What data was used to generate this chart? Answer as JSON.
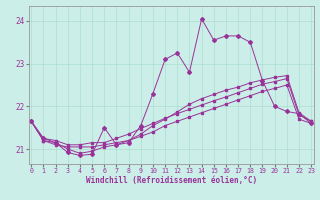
{
  "xlabel": "Windchill (Refroidissement éolien,°C)",
  "background_color": "#cceee8",
  "grid_color": "#aaddcc",
  "line_color": "#993399",
  "xmin": 0,
  "xmax": 23,
  "ymin": 20.65,
  "ymax": 24.35,
  "yticks": [
    21,
    22,
    23,
    24
  ],
  "xticks": [
    0,
    1,
    2,
    3,
    4,
    5,
    6,
    7,
    8,
    9,
    10,
    11,
    12,
    13,
    14,
    15,
    16,
    17,
    18,
    19,
    20,
    21,
    22,
    23
  ],
  "line1_x": [
    0,
    1,
    2,
    3,
    4,
    5,
    6,
    7,
    8,
    9,
    10,
    11,
    12,
    13,
    14,
    15,
    16,
    17,
    18,
    19,
    20,
    21,
    22,
    23
  ],
  "line1_y": [
    21.65,
    21.2,
    21.1,
    21.05,
    21.05,
    21.05,
    21.1,
    21.15,
    21.2,
    21.3,
    21.4,
    21.55,
    21.65,
    21.75,
    21.85,
    21.95,
    22.05,
    22.15,
    22.25,
    22.35,
    22.42,
    22.5,
    21.7,
    21.6
  ],
  "line2_x": [
    0,
    1,
    2,
    3,
    4,
    5,
    6,
    7,
    8,
    9,
    10,
    11,
    12,
    13,
    14,
    15,
    16,
    17,
    18,
    19,
    20,
    21,
    22,
    23
  ],
  "line2_y": [
    21.65,
    21.25,
    21.2,
    21.1,
    21.1,
    21.15,
    21.15,
    21.25,
    21.35,
    21.48,
    21.6,
    21.72,
    21.83,
    21.93,
    22.03,
    22.13,
    22.22,
    22.32,
    22.42,
    22.52,
    22.58,
    22.65,
    21.8,
    21.65
  ],
  "line3_x": [
    0,
    1,
    2,
    3,
    4,
    5,
    6,
    7,
    8,
    9,
    10,
    11,
    12,
    13,
    14,
    15,
    16,
    17,
    18,
    19,
    20,
    21,
    22,
    23
  ],
  "line3_y": [
    21.65,
    21.2,
    21.15,
    21.0,
    20.9,
    20.95,
    21.05,
    21.1,
    21.2,
    21.35,
    21.55,
    21.7,
    21.87,
    22.05,
    22.18,
    22.28,
    22.38,
    22.45,
    22.55,
    22.62,
    22.68,
    22.72,
    21.85,
    21.65
  ],
  "line4_x": [
    0,
    1,
    2,
    3,
    4,
    5,
    6,
    7,
    8,
    9,
    10,
    11,
    12,
    13,
    14,
    15,
    16,
    17,
    18,
    19,
    20,
    21,
    22,
    23
  ],
  "line4_y": [
    21.65,
    21.25,
    21.15,
    20.92,
    20.85,
    20.88,
    21.5,
    21.1,
    21.15,
    21.55,
    22.3,
    23.1,
    23.25,
    22.8,
    24.05,
    23.55,
    23.65,
    23.65,
    23.5,
    22.6,
    22.0,
    21.88,
    21.83,
    21.6
  ]
}
